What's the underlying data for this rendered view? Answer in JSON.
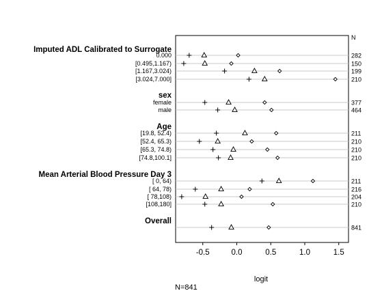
{
  "chart_data": {
    "type": "dotplot",
    "n_header": "N",
    "xlabel": "logit",
    "footnote": "N=841",
    "xlim": [
      -0.85,
      1.5
    ],
    "xticks": [
      -0.5,
      0.0,
      0.5,
      1.0,
      1.5
    ],
    "xtick_labels": [
      "-0.5",
      "0.0",
      "0.5",
      "1.0",
      "1.5"
    ],
    "series": [
      {
        "marker": "plus"
      },
      {
        "marker": "triangle"
      },
      {
        "marker": "diamond"
      }
    ],
    "groups": [
      {
        "label": "Imputed ADL Calibrated to Surrogate",
        "rows": [
          {
            "label": "0.000",
            "n": "282",
            "values": [
              -0.7,
              -0.48,
              0.02
            ]
          },
          {
            "label": "[0.495,1.167)",
            "n": "150",
            "values": [
              -0.78,
              -0.47,
              -0.08
            ]
          },
          {
            "label": "[1.167,3.024)",
            "n": "199",
            "values": [
              -0.18,
              0.26,
              0.63
            ]
          },
          {
            "label": "[3.024,7.000]",
            "n": "210",
            "values": [
              0.18,
              0.41,
              1.45
            ]
          }
        ]
      },
      {
        "label": "sex",
        "rows": [
          {
            "label": "female",
            "n": "377",
            "values": [
              -0.47,
              -0.12,
              0.41
            ]
          },
          {
            "label": "male",
            "n": "464",
            "values": [
              -0.28,
              -0.03,
              0.51
            ]
          }
        ]
      },
      {
        "label": "Age",
        "rows": [
          {
            "label": "[19.8, 52.4)",
            "n": "211",
            "values": [
              -0.3,
              0.12,
              0.58
            ]
          },
          {
            "label": "[52.4, 65.3)",
            "n": "210",
            "values": [
              -0.55,
              -0.28,
              0.22
            ]
          },
          {
            "label": "[65.3, 74.8)",
            "n": "210",
            "values": [
              -0.35,
              -0.05,
              0.45
            ]
          },
          {
            "label": "[74.8,100.1]",
            "n": "210",
            "values": [
              -0.27,
              -0.09,
              0.6
            ]
          }
        ]
      },
      {
        "label": "Mean Arterial Blood Pressure Day 3",
        "rows": [
          {
            "label": "[ 0, 64)",
            "n": "211",
            "values": [
              0.37,
              0.62,
              1.12
            ]
          },
          {
            "label": "[ 64, 78)",
            "n": "216",
            "values": [
              -0.61,
              -0.23,
              0.19
            ]
          },
          {
            "label": "[ 78,108)",
            "n": "204",
            "values": [
              -0.81,
              -0.46,
              0.07
            ]
          },
          {
            "label": "[108,180]",
            "n": "210",
            "values": [
              -0.47,
              -0.23,
              0.53
            ]
          }
        ]
      },
      {
        "label": "Overall",
        "rows": [
          {
            "label": "",
            "n": "841",
            "values": [
              -0.37,
              -0.08,
              0.47
            ]
          }
        ]
      }
    ],
    "grid": "horizontal reference line per row",
    "legend": "none",
    "colors": {
      "ink": "#000000",
      "rowline": "#c8c8c8",
      "frame": "#000000"
    }
  }
}
